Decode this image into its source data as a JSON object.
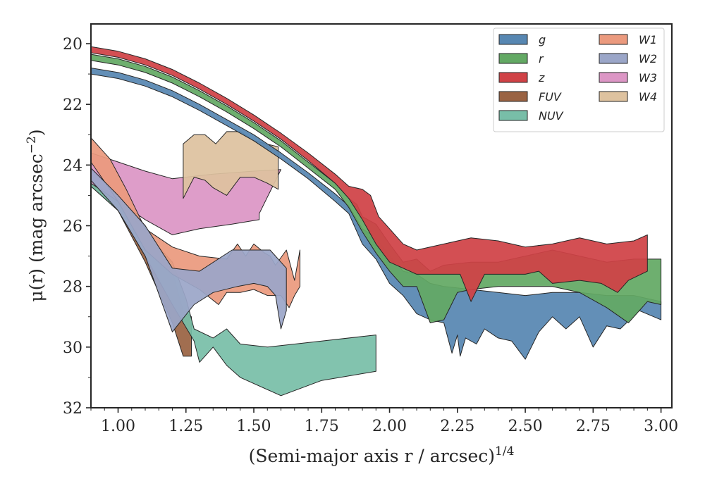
{
  "chart_data": {
    "type": "area",
    "xlabel": "(Semi-major axis r / arcsec)",
    "xlabel_sup": "1/4",
    "ylabel": "μ(r) (mag arcsec",
    "ylabel_sup": "−2",
    "ylabel_close": ")",
    "xlim": [
      0.9,
      3.04
    ],
    "ylim": [
      32.0,
      19.35
    ],
    "y_inverted": true,
    "xticks": [
      1.0,
      1.25,
      1.5,
      1.75,
      2.0,
      2.25,
      2.5,
      2.75,
      3.0
    ],
    "xtick_labels": [
      "1.00",
      "1.25",
      "1.50",
      "1.75",
      "2.00",
      "2.25",
      "2.50",
      "2.75",
      "3.00"
    ],
    "yticks": [
      20,
      22,
      24,
      26,
      28,
      30,
      32
    ],
    "ytick_labels": [
      "20",
      "22",
      "24",
      "26",
      "28",
      "30",
      "32"
    ],
    "grid": false,
    "legend_position": "top-right",
    "legend_columns": 2,
    "series": [
      {
        "name": "FUV",
        "color": "#9a6343",
        "upper": [
          [
            0.9,
            24.6
          ],
          [
            1.0,
            25.0
          ],
          [
            1.1,
            26.0
          ],
          [
            1.2,
            27.5
          ],
          [
            1.24,
            28.8
          ],
          [
            1.27,
            29.0
          ]
        ],
        "lower": [
          [
            1.27,
            30.3
          ],
          [
            1.24,
            30.3
          ],
          [
            1.2,
            29.2
          ],
          [
            1.1,
            27.2
          ],
          [
            1.0,
            25.5
          ],
          [
            0.9,
            24.7
          ]
        ]
      },
      {
        "name": "NUV",
        "color": "#78bea8",
        "upper": [
          [
            0.9,
            24.5
          ],
          [
            1.0,
            25.2
          ],
          [
            1.1,
            26.2
          ],
          [
            1.2,
            27.2
          ],
          [
            1.25,
            28.4
          ],
          [
            1.28,
            29.4
          ],
          [
            1.35,
            29.7
          ],
          [
            1.4,
            29.4
          ],
          [
            1.45,
            29.9
          ],
          [
            1.55,
            30.0
          ],
          [
            1.75,
            29.8
          ],
          [
            1.95,
            29.6
          ]
        ],
        "lower": [
          [
            1.95,
            30.8
          ],
          [
            1.75,
            31.1
          ],
          [
            1.6,
            31.6
          ],
          [
            1.45,
            31.0
          ],
          [
            1.4,
            30.6
          ],
          [
            1.35,
            30.0
          ],
          [
            1.3,
            30.5
          ],
          [
            1.28,
            29.8
          ],
          [
            1.2,
            28.6
          ],
          [
            1.1,
            27.0
          ],
          [
            1.0,
            25.5
          ],
          [
            0.9,
            24.7
          ]
        ]
      },
      {
        "name": "W3",
        "color": "#dc96c5",
        "upper": [
          [
            0.9,
            23.6
          ],
          [
            1.0,
            23.9
          ],
          [
            1.1,
            24.2
          ],
          [
            1.2,
            24.45
          ],
          [
            1.35,
            24.3
          ],
          [
            1.5,
            24.2
          ],
          [
            1.6,
            24.15
          ]
        ],
        "lower": [
          [
            1.52,
            25.6
          ],
          [
            1.52,
            25.8
          ],
          [
            1.42,
            25.95
          ],
          [
            1.3,
            26.1
          ],
          [
            1.2,
            26.3
          ],
          [
            1.1,
            25.8
          ],
          [
            1.0,
            25.2
          ],
          [
            0.9,
            24.6
          ]
        ]
      },
      {
        "name": "W4",
        "color": "#dec29f",
        "upper": [
          [
            1.24,
            23.3
          ],
          [
            1.28,
            23.0
          ],
          [
            1.32,
            23.0
          ],
          [
            1.36,
            23.3
          ],
          [
            1.4,
            22.9
          ],
          [
            1.45,
            22.9
          ],
          [
            1.5,
            23.2
          ],
          [
            1.59,
            23.4
          ]
        ],
        "lower": [
          [
            1.59,
            24.8
          ],
          [
            1.55,
            24.6
          ],
          [
            1.5,
            24.4
          ],
          [
            1.45,
            24.4
          ],
          [
            1.4,
            25.0
          ],
          [
            1.35,
            24.75
          ],
          [
            1.32,
            24.5
          ],
          [
            1.28,
            24.4
          ],
          [
            1.24,
            25.1
          ]
        ]
      },
      {
        "name": "W1",
        "color": "#eb9a7e",
        "upper": [
          [
            0.9,
            23.1
          ],
          [
            0.97,
            23.8
          ],
          [
            1.03,
            24.8
          ],
          [
            1.1,
            26.1
          ],
          [
            1.2,
            26.7
          ],
          [
            1.3,
            27.0
          ],
          [
            1.4,
            27.1
          ],
          [
            1.44,
            26.6
          ],
          [
            1.47,
            27.0
          ],
          [
            1.5,
            26.6
          ],
          [
            1.54,
            26.9
          ],
          [
            1.56,
            27.0
          ],
          [
            1.58,
            27.3
          ],
          [
            1.62,
            26.8
          ],
          [
            1.65,
            27.8
          ],
          [
            1.67,
            26.8
          ]
        ],
        "lower": [
          [
            1.67,
            28.0
          ],
          [
            1.65,
            28.3
          ],
          [
            1.63,
            28.7
          ],
          [
            1.6,
            28.3
          ],
          [
            1.55,
            28.3
          ],
          [
            1.5,
            28.1
          ],
          [
            1.45,
            28.2
          ],
          [
            1.4,
            28.2
          ],
          [
            1.37,
            28.6
          ],
          [
            1.3,
            28.1
          ],
          [
            1.2,
            27.6
          ],
          [
            1.1,
            26.8
          ],
          [
            1.0,
            25.2
          ],
          [
            0.9,
            23.9
          ]
        ]
      },
      {
        "name": "W2",
        "color": "#9ba6c8",
        "upper": [
          [
            0.9,
            24.1
          ],
          [
            1.0,
            25.0
          ],
          [
            1.1,
            26.0
          ],
          [
            1.2,
            27.4
          ],
          [
            1.3,
            27.5
          ],
          [
            1.42,
            26.8
          ],
          [
            1.5,
            26.8
          ],
          [
            1.56,
            26.8
          ],
          [
            1.62,
            27.4
          ]
        ],
        "lower": [
          [
            1.62,
            28.8
          ],
          [
            1.6,
            29.4
          ],
          [
            1.58,
            28.3
          ],
          [
            1.55,
            28.0
          ],
          [
            1.5,
            27.9
          ],
          [
            1.44,
            28.0
          ],
          [
            1.35,
            28.2
          ],
          [
            1.28,
            28.6
          ],
          [
            1.2,
            29.5
          ],
          [
            1.1,
            27.0
          ],
          [
            1.0,
            25.5
          ],
          [
            0.9,
            24.5
          ]
        ]
      },
      {
        "name": "g",
        "color": "#5787b2",
        "upper": [
          [
            0.9,
            20.8
          ],
          [
            1.0,
            20.95
          ],
          [
            1.1,
            21.2
          ],
          [
            1.2,
            21.55
          ],
          [
            1.3,
            22.0
          ],
          [
            1.4,
            22.5
          ],
          [
            1.5,
            23.0
          ],
          [
            1.6,
            23.6
          ],
          [
            1.7,
            24.25
          ],
          [
            1.8,
            24.95
          ],
          [
            1.85,
            25.35
          ],
          [
            1.9,
            26.1
          ],
          [
            1.95,
            26.4
          ],
          [
            2.0,
            27.0
          ],
          [
            2.05,
            27.5
          ],
          [
            2.1,
            27.6
          ],
          [
            2.15,
            27.9
          ],
          [
            2.2,
            28.0
          ],
          [
            2.3,
            28.1
          ],
          [
            2.4,
            28.2
          ],
          [
            2.5,
            28.3
          ],
          [
            2.6,
            28.2
          ],
          [
            2.7,
            28.2
          ],
          [
            2.8,
            28.3
          ],
          [
            2.9,
            28.3
          ],
          [
            3.0,
            28.5
          ]
        ],
        "lower": [
          [
            3.0,
            29.1
          ],
          [
            2.92,
            28.8
          ],
          [
            2.85,
            29.4
          ],
          [
            2.8,
            29.3
          ],
          [
            2.75,
            30.0
          ],
          [
            2.7,
            29.0
          ],
          [
            2.65,
            29.4
          ],
          [
            2.6,
            29.0
          ],
          [
            2.55,
            29.5
          ],
          [
            2.5,
            30.4
          ],
          [
            2.45,
            29.8
          ],
          [
            2.4,
            29.7
          ],
          [
            2.35,
            29.4
          ],
          [
            2.32,
            29.9
          ],
          [
            2.28,
            29.7
          ],
          [
            2.26,
            30.3
          ],
          [
            2.25,
            29.6
          ],
          [
            2.23,
            30.2
          ],
          [
            2.2,
            29.2
          ],
          [
            2.15,
            29.1
          ],
          [
            2.1,
            28.9
          ],
          [
            2.05,
            28.3
          ],
          [
            2.0,
            27.9
          ],
          [
            1.95,
            27.1
          ],
          [
            1.9,
            26.6
          ],
          [
            1.85,
            25.6
          ],
          [
            1.8,
            25.2
          ],
          [
            1.7,
            24.45
          ],
          [
            1.6,
            23.8
          ],
          [
            1.5,
            23.2
          ],
          [
            1.4,
            22.7
          ],
          [
            1.3,
            22.2
          ],
          [
            1.2,
            21.75
          ],
          [
            1.1,
            21.4
          ],
          [
            1.0,
            21.15
          ],
          [
            0.9,
            21.0
          ]
        ]
      },
      {
        "name": "r",
        "color": "#63a964",
        "upper": [
          [
            0.9,
            20.35
          ],
          [
            1.0,
            20.5
          ],
          [
            1.1,
            20.75
          ],
          [
            1.2,
            21.1
          ],
          [
            1.3,
            21.55
          ],
          [
            1.4,
            22.05
          ],
          [
            1.5,
            22.6
          ],
          [
            1.6,
            23.2
          ],
          [
            1.7,
            23.9
          ],
          [
            1.8,
            24.6
          ],
          [
            1.85,
            25.1
          ],
          [
            1.88,
            25.3
          ],
          [
            1.9,
            25.7
          ],
          [
            1.95,
            25.95
          ],
          [
            2.0,
            26.6
          ],
          [
            2.05,
            27.2
          ],
          [
            2.1,
            27.1
          ],
          [
            2.15,
            27.5
          ],
          [
            2.2,
            27.3
          ],
          [
            2.3,
            27.2
          ],
          [
            2.4,
            27.2
          ],
          [
            2.5,
            27.0
          ],
          [
            2.6,
            26.8
          ],
          [
            2.7,
            27.0
          ],
          [
            2.8,
            27.2
          ],
          [
            2.9,
            27.1
          ],
          [
            3.0,
            27.1
          ]
        ],
        "lower": [
          [
            3.0,
            28.6
          ],
          [
            2.95,
            28.5
          ],
          [
            2.9,
            29.0
          ],
          [
            2.88,
            29.2
          ],
          [
            2.8,
            28.7
          ],
          [
            2.7,
            28.2
          ],
          [
            2.6,
            28.0
          ],
          [
            2.5,
            28.0
          ],
          [
            2.4,
            28.0
          ],
          [
            2.3,
            28.1
          ],
          [
            2.25,
            28.2
          ],
          [
            2.2,
            29.1
          ],
          [
            2.15,
            29.2
          ],
          [
            2.1,
            28.0
          ],
          [
            2.05,
            28.0
          ],
          [
            2.0,
            27.5
          ],
          [
            1.95,
            26.9
          ],
          [
            1.9,
            26.2
          ],
          [
            1.85,
            25.4
          ],
          [
            1.8,
            24.8
          ],
          [
            1.7,
            24.1
          ],
          [
            1.6,
            23.4
          ],
          [
            1.5,
            22.8
          ],
          [
            1.4,
            22.25
          ],
          [
            1.3,
            21.75
          ],
          [
            1.2,
            21.3
          ],
          [
            1.1,
            20.95
          ],
          [
            1.0,
            20.7
          ],
          [
            0.9,
            20.55
          ]
        ]
      },
      {
        "name": "z",
        "color": "#d04246",
        "upper": [
          [
            0.9,
            20.1
          ],
          [
            1.0,
            20.25
          ],
          [
            1.1,
            20.5
          ],
          [
            1.2,
            20.85
          ],
          [
            1.3,
            21.3
          ],
          [
            1.4,
            21.8
          ],
          [
            1.5,
            22.35
          ],
          [
            1.6,
            22.95
          ],
          [
            1.7,
            23.6
          ],
          [
            1.8,
            24.3
          ],
          [
            1.85,
            24.7
          ],
          [
            1.9,
            24.8
          ],
          [
            1.93,
            25.0
          ],
          [
            1.96,
            25.7
          ],
          [
            2.0,
            26.1
          ],
          [
            2.05,
            26.6
          ],
          [
            2.1,
            26.8
          ],
          [
            2.2,
            26.6
          ],
          [
            2.3,
            26.4
          ],
          [
            2.4,
            26.5
          ],
          [
            2.5,
            26.7
          ],
          [
            2.6,
            26.6
          ],
          [
            2.7,
            26.4
          ],
          [
            2.8,
            26.6
          ],
          [
            2.9,
            26.5
          ],
          [
            2.95,
            26.3
          ]
        ],
        "lower": [
          [
            2.95,
            27.5
          ],
          [
            2.88,
            27.8
          ],
          [
            2.84,
            28.2
          ],
          [
            2.78,
            27.9
          ],
          [
            2.7,
            27.8
          ],
          [
            2.6,
            27.9
          ],
          [
            2.55,
            27.5
          ],
          [
            2.5,
            27.6
          ],
          [
            2.4,
            27.6
          ],
          [
            2.35,
            27.6
          ],
          [
            2.3,
            28.5
          ],
          [
            2.26,
            27.6
          ],
          [
            2.2,
            27.6
          ],
          [
            2.1,
            27.6
          ],
          [
            2.0,
            27.2
          ],
          [
            1.95,
            26.6
          ],
          [
            1.9,
            25.8
          ],
          [
            1.85,
            25.1
          ],
          [
            1.8,
            24.6
          ],
          [
            1.7,
            23.85
          ],
          [
            1.6,
            23.15
          ],
          [
            1.5,
            22.55
          ],
          [
            1.4,
            22.0
          ],
          [
            1.3,
            21.5
          ],
          [
            1.2,
            21.05
          ],
          [
            1.1,
            20.7
          ],
          [
            1.0,
            20.45
          ],
          [
            0.9,
            20.3
          ]
        ]
      }
    ],
    "legend": [
      [
        "g",
        "r",
        "z",
        "FUV",
        "NUV"
      ],
      [
        "W1",
        "W2",
        "W3",
        "W4"
      ]
    ]
  }
}
